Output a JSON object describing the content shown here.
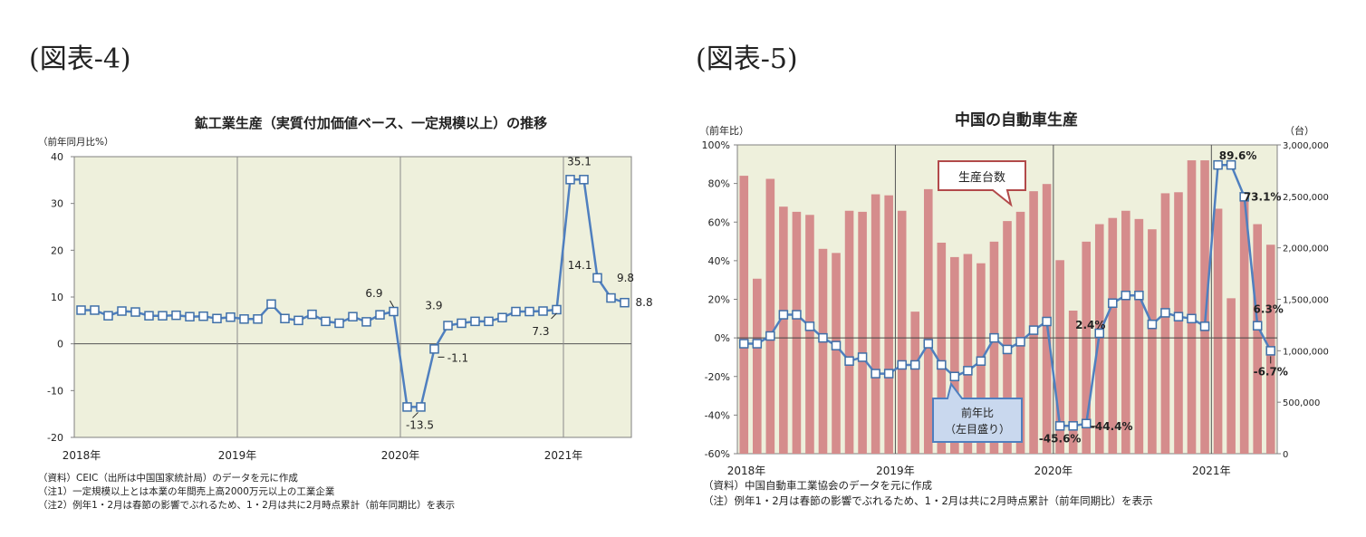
{
  "figures": [
    {
      "label": "(図表-4)"
    },
    {
      "label": "(図表-5)"
    }
  ],
  "chart_data": [
    {
      "type": "line",
      "title": "鉱工業生産（実質付加価値ベース、一定規模以上）の推移",
      "ylabel": "（前年同月比%）",
      "ylim": [
        -20,
        40
      ],
      "yticks": [
        "40",
        "30",
        "20",
        "10",
        "0",
        "-10",
        "-20"
      ],
      "year_labels": [
        "2018年",
        "2019年",
        "2020年",
        "2021年"
      ],
      "grid": "vertical lines at year boundaries",
      "background": "#eef0dc",
      "line_color": "#4f7fbf",
      "x": [
        "2018-01",
        "2018-02",
        "2018-03",
        "2018-04",
        "2018-05",
        "2018-06",
        "2018-07",
        "2018-08",
        "2018-09",
        "2018-10",
        "2018-11",
        "2018-12",
        "2019-01",
        "2019-02",
        "2019-03",
        "2019-04",
        "2019-05",
        "2019-06",
        "2019-07",
        "2019-08",
        "2019-09",
        "2019-10",
        "2019-11",
        "2019-12",
        "2020-01",
        "2020-02",
        "2020-03",
        "2020-04",
        "2020-05",
        "2020-06",
        "2020-07",
        "2020-08",
        "2020-09",
        "2020-10",
        "2020-11",
        "2020-12",
        "2021-01",
        "2021-02",
        "2021-03",
        "2021-04",
        "2021-05"
      ],
      "series": [
        {
          "values": [
            7.2,
            7.2,
            6.0,
            7.0,
            6.8,
            6.0,
            6.0,
            6.1,
            5.8,
            5.9,
            5.4,
            5.7,
            5.3,
            5.3,
            8.5,
            5.4,
            5.0,
            6.3,
            4.8,
            4.4,
            5.8,
            4.7,
            6.2,
            6.9,
            -13.5,
            -13.5,
            -1.1,
            3.9,
            4.4,
            4.8,
            4.8,
            5.6,
            6.9,
            6.9,
            7.0,
            7.3,
            35.1,
            35.1,
            14.1,
            9.8,
            8.8
          ]
        }
      ],
      "annotations": [
        "6.9",
        "-13.5",
        "3.9",
        "-1.1",
        "7.3",
        "35.1",
        "14.1",
        "9.8",
        "8.8"
      ],
      "notes": [
        "（資料）CEIC（出所は中国国家統計局）のデータを元に作成",
        "（注1）一定規模以上とは本業の年間売上高2000万元以上の工業企業",
        "（注2）例年1・2月は春節の影響でぶれるため、1・2月は共に2月時点累計（前年同期比）を表示"
      ]
    },
    {
      "type": "bar+line",
      "title": "中国の自動車生産",
      "ylabel_left": "（前年比）",
      "ylabel_right": "（台）",
      "ylim_left": [
        -60,
        100
      ],
      "ylim_right": [
        0,
        3000000
      ],
      "yticks_left": [
        "100%",
        "80%",
        "60%",
        "40%",
        "20%",
        "0%",
        "-20%",
        "-40%",
        "-60%"
      ],
      "yticks_right": [
        "3,000,000",
        "2,500,000",
        "2,000,000",
        "1,500,000",
        "1,000,000",
        "500,000",
        "0"
      ],
      "year_labels": [
        "2018年",
        "2019年",
        "2020年",
        "2021年"
      ],
      "background": "#eef0dc",
      "bar_color": "#d58c8c",
      "line_color": "#4f7fbf",
      "x": [
        "2018-01",
        "2018-02",
        "2018-03",
        "2018-04",
        "2018-05",
        "2018-06",
        "2018-07",
        "2018-08",
        "2018-09",
        "2018-10",
        "2018-11",
        "2018-12",
        "2019-01",
        "2019-02",
        "2019-03",
        "2019-04",
        "2019-05",
        "2019-06",
        "2019-07",
        "2019-08",
        "2019-09",
        "2019-10",
        "2019-11",
        "2019-12",
        "2020-01",
        "2020-02",
        "2020-03",
        "2020-04",
        "2020-05",
        "2020-06",
        "2020-07",
        "2020-08",
        "2020-09",
        "2020-10",
        "2020-11",
        "2020-12",
        "2021-01",
        "2021-02",
        "2021-03",
        "2021-04",
        "2021-05"
      ],
      "series": [
        {
          "name": "生産台数",
          "kind": "bar",
          "axis": "right",
          "values": [
            2700000,
            1700000,
            2670000,
            2400000,
            2350000,
            2320000,
            1990000,
            1950000,
            2360000,
            2350000,
            2520000,
            2510000,
            2360000,
            1380000,
            2570000,
            2050000,
            1910000,
            1940000,
            1850000,
            2060000,
            2260000,
            2350000,
            2550000,
            2620000,
            1880000,
            1390000,
            2060000,
            2230000,
            2290000,
            2360000,
            2280000,
            2180000,
            2530000,
            2540000,
            2850000,
            2850000,
            2380000,
            1510000,
            2490000,
            2230000,
            2030000
          ]
        },
        {
          "name": "前年比",
          "kind": "line",
          "axis": "left",
          "values": [
            -3,
            -3,
            1,
            12,
            12,
            6,
            0,
            -4,
            -12,
            -10,
            -18.5,
            -18.5,
            -14,
            -14,
            -3,
            -14,
            -20,
            -17,
            -12,
            0,
            -6,
            -2,
            4,
            8.5,
            -45.6,
            -45.6,
            -44.4,
            2.4,
            18,
            22,
            22,
            7,
            13,
            11,
            10,
            6,
            89.6,
            89.6,
            73.1,
            6.3,
            -6.7
          ]
        }
      ],
      "callouts": {
        "bars": "生産台数",
        "line": "前年比",
        "line_sub": "（左目盛り）"
      },
      "annotations": [
        "89.6%",
        "73.1%",
        "6.3%",
        "-6.7%",
        "2.4%",
        "-45.6%",
        "-44.4%"
      ],
      "notes": [
        "（資料）中国自動車工業協会のデータを元に作成",
        "（注）例年1・2月は春節の影響でぶれるため、1・2月は共に2月時点累計（前年同期比）を表示"
      ]
    }
  ]
}
